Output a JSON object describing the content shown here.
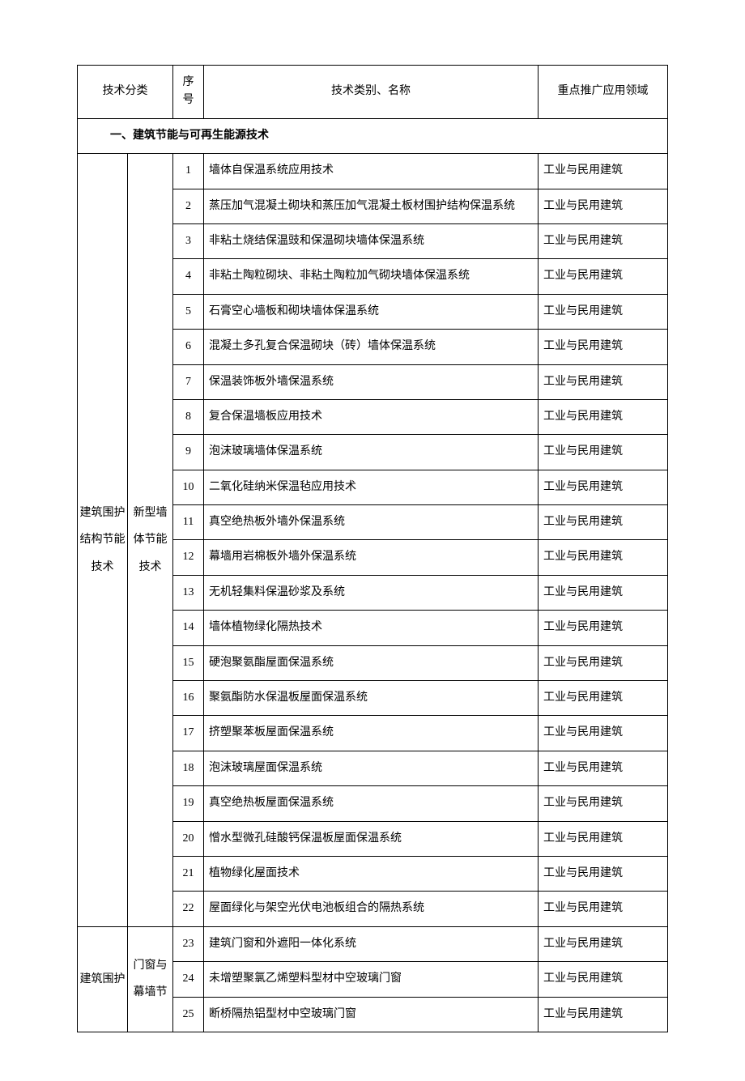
{
  "headers": {
    "category": "技术分类",
    "seq": "序号",
    "name": "技术类别、名称",
    "area": "重点推广应用领域"
  },
  "section": {
    "title": "一、建筑节能与可再生能源技术"
  },
  "cat1_a": "建筑围护结构节能技术",
  "cat2_a": "新型墙体节能技术",
  "cat1_b": "建筑围护",
  "cat2_b": "门窗与幕墙节",
  "rows": [
    {
      "seq": "1",
      "name": "墙体自保温系统应用技术",
      "area": "工业与民用建筑"
    },
    {
      "seq": "2",
      "name": "蒸压加气混凝土砌块和蒸压加气混凝土板材围护结构保温系统",
      "area": "工业与民用建筑"
    },
    {
      "seq": "3",
      "name": "非粘土烧结保温豉和保温砌块墙体保温系统",
      "area": "工业与民用建筑"
    },
    {
      "seq": "4",
      "name": "非粘土陶粒砌块、非粘土陶粒加气砌块墙体保温系统",
      "area": "工业与民用建筑"
    },
    {
      "seq": "5",
      "name": "石膏空心墙板和砌块墙体保温系统",
      "area": "工业与民用建筑"
    },
    {
      "seq": "6",
      "name": "混凝土多孔复合保温砌块（砖）墙体保温系统",
      "area": "工业与民用建筑"
    },
    {
      "seq": "7",
      "name": "保温装饰板外墙保温系统",
      "area": "工业与民用建筑"
    },
    {
      "seq": "8",
      "name": "复合保温墙板应用技术",
      "area": "工业与民用建筑"
    },
    {
      "seq": "9",
      "name": "泡沫玻璃墙体保温系统",
      "area": "工业与民用建筑"
    },
    {
      "seq": "10",
      "name": "二氧化硅纳米保温毡应用技术",
      "area": "工业与民用建筑"
    },
    {
      "seq": "11",
      "name": "真空绝热板外墙外保温系统",
      "area": "工业与民用建筑"
    },
    {
      "seq": "12",
      "name": "幕墙用岩棉板外墙外保温系统",
      "area": "工业与民用建筑"
    },
    {
      "seq": "13",
      "name": "无机轻集料保温砂浆及系统",
      "area": "工业与民用建筑"
    },
    {
      "seq": "14",
      "name": "墙体植物绿化隔热技术",
      "area": "工业与民用建筑"
    },
    {
      "seq": "15",
      "name": "硬泡聚氨酯屋面保温系统",
      "area": "工业与民用建筑"
    },
    {
      "seq": "16",
      "name": "聚氨酯防水保温板屋面保温系统",
      "area": "工业与民用建筑"
    },
    {
      "seq": "17",
      "name": "挤塑聚苯板屋面保温系统",
      "area": "工业与民用建筑"
    },
    {
      "seq": "18",
      "name": "泡沫玻璃屋面保温系统",
      "area": "工业与民用建筑"
    },
    {
      "seq": "19",
      "name": "真空绝热板屋面保温系统",
      "area": "工业与民用建筑"
    },
    {
      "seq": "20",
      "name": "憎水型微孔硅酸钙保温板屋面保温系统",
      "area": "工业与民用建筑"
    },
    {
      "seq": "21",
      "name": "植物绿化屋面技术",
      "area": "工业与民用建筑"
    },
    {
      "seq": "22",
      "name": "屋面绿化与架空光伏电池板组合的隔热系统",
      "area": "工业与民用建筑"
    },
    {
      "seq": "23",
      "name": "建筑门窗和外遮阳一体化系统",
      "area": "工业与民用建筑"
    },
    {
      "seq": "24",
      "name": "未增塑聚氯乙烯塑料型材中空玻璃门窗",
      "area": "工业与民用建筑"
    },
    {
      "seq": "25",
      "name": "断桥隔热铝型材中空玻璃门窗",
      "area": "工业与民用建筑"
    }
  ]
}
